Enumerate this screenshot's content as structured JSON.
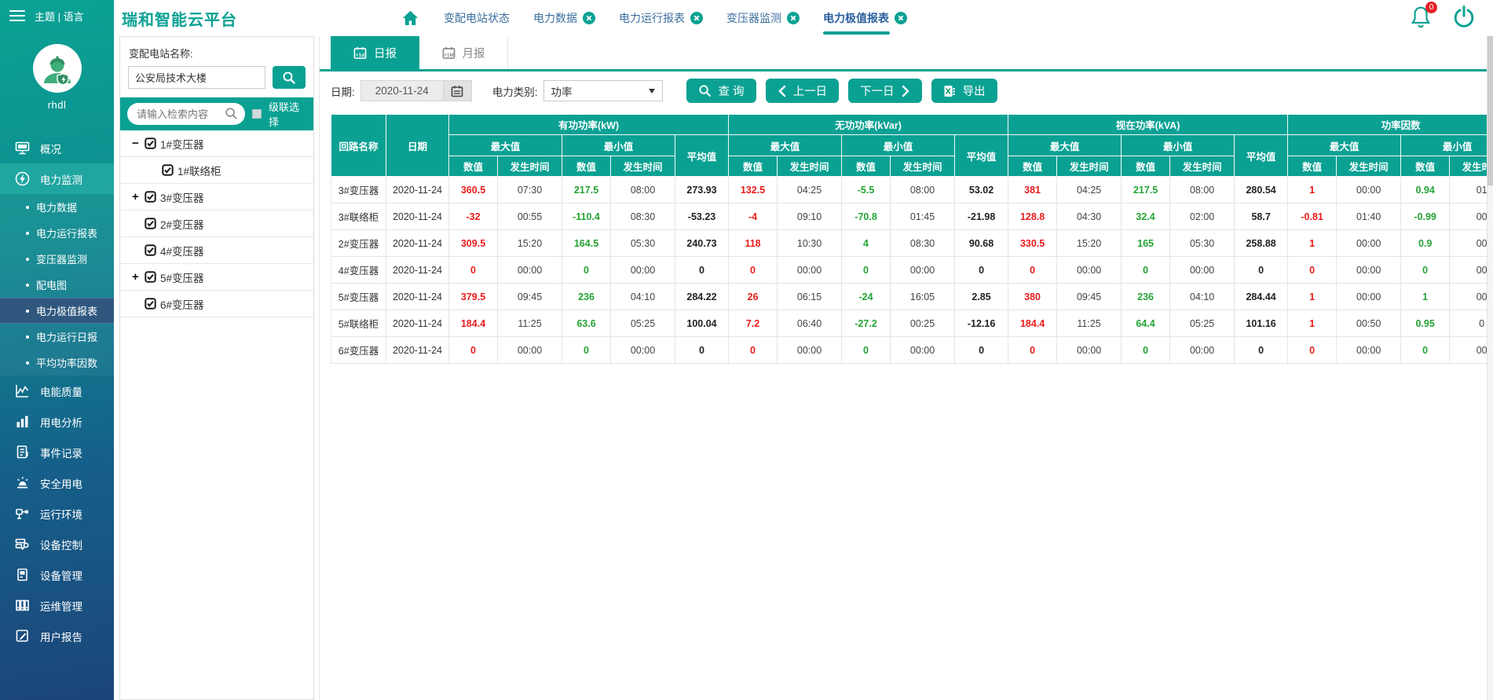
{
  "app": {
    "sidebar_header": "主题 | 语言",
    "username": "rhdl",
    "title": "瑞和智能云平台",
    "notification_count": "0"
  },
  "colors": {
    "accent": "#0aa193",
    "red": "#e81c1c",
    "green": "#24a335",
    "badge": "#e62129",
    "sb-top": "#0ba294",
    "sb-bottom": "#1c4579",
    "selected": "#30587f"
  },
  "nav_tabs": [
    {
      "label": "变配电站状态",
      "closable": false,
      "active": false
    },
    {
      "label": "电力数据",
      "closable": true,
      "active": false
    },
    {
      "label": "电力运行报表",
      "closable": true,
      "active": false
    },
    {
      "label": "变压器监测",
      "closable": true,
      "active": false
    },
    {
      "label": "电力极值报表",
      "closable": true,
      "active": true
    }
  ],
  "sidebar_items": [
    {
      "label": "概况",
      "icon": "overview-monitor-icon",
      "type": "item"
    },
    {
      "label": "电力监测",
      "icon": "power-bolt-icon",
      "type": "item",
      "state": "active"
    },
    {
      "label": "电力数据",
      "type": "subitem"
    },
    {
      "label": "电力运行报表",
      "type": "subitem"
    },
    {
      "label": "变压器监测",
      "type": "subitem"
    },
    {
      "label": "配电图",
      "type": "subitem"
    },
    {
      "label": "电力极值报表",
      "type": "subitem",
      "state": "selected"
    },
    {
      "label": "电力运行日报",
      "type": "subitem"
    },
    {
      "label": "平均功率因数",
      "type": "subitem"
    },
    {
      "label": "电能质量",
      "icon": "wave-chart-icon",
      "type": "item"
    },
    {
      "label": "用电分析",
      "icon": "bar-chart-icon",
      "type": "item"
    },
    {
      "label": "事件记录",
      "icon": "event-log-icon",
      "type": "item"
    },
    {
      "label": "安全用电",
      "icon": "alarm-icon",
      "type": "item"
    },
    {
      "label": "运行环境",
      "icon": "environment-icon",
      "type": "item"
    },
    {
      "label": "设备控制",
      "icon": "device-control-icon",
      "type": "item"
    },
    {
      "label": "设备管理",
      "icon": "device-manage-icon",
      "type": "item"
    },
    {
      "label": "运维管理",
      "icon": "ops-manage-icon",
      "type": "item"
    },
    {
      "label": "用户报告",
      "icon": "user-report-icon",
      "type": "item"
    }
  ],
  "tree": {
    "station_label": "变配电站名称:",
    "station_value": "公安局技术大楼",
    "search_placeholder": "请输入检索内容",
    "cascade_label": "级联选择",
    "nodes": [
      {
        "label": "1#变压器",
        "toggle": "minus",
        "indent": 0,
        "checked": true
      },
      {
        "label": "1#联络柜",
        "toggle": "none",
        "indent": 1,
        "checked": true
      },
      {
        "label": "3#变压器",
        "toggle": "plus",
        "indent": 0,
        "checked": true
      },
      {
        "label": "2#变压器",
        "toggle": "none",
        "indent": 0,
        "checked": true
      },
      {
        "label": "4#变压器",
        "toggle": "none",
        "indent": 0,
        "checked": true
      },
      {
        "label": "5#变压器",
        "toggle": "plus",
        "indent": 0,
        "checked": true
      },
      {
        "label": "6#变压器",
        "toggle": "none",
        "indent": 0,
        "checked": true
      }
    ]
  },
  "report_tabs": [
    {
      "label": "日报",
      "icon": "daily-calendar-icon",
      "icon_text": "+1d",
      "active": true
    },
    {
      "label": "月报",
      "icon": "monthly-calendar-icon",
      "icon_text": "+1M",
      "active": false
    }
  ],
  "toolbar": {
    "date_label": "日期:",
    "date_value": "2020-11-24",
    "category_label": "电力类别:",
    "category_value": "功率",
    "search_button": "查 询",
    "prev_button": "上一日",
    "next_button": "下一日",
    "export_button": "导出"
  },
  "table": {
    "headers": {
      "circuit": "回路名称",
      "date": "日期",
      "max": "最大值",
      "min": "最小值",
      "avg": "平均值",
      "value": "数值",
      "time": "发生时间"
    },
    "groups": [
      {
        "key": "active",
        "title": "有功功率(kW)",
        "has_avg": true
      },
      {
        "key": "reactive",
        "title": "无功功率(kVar)",
        "has_avg": true
      },
      {
        "key": "apparent",
        "title": "视在功率(kVA)",
        "has_avg": true
      },
      {
        "key": "pf",
        "title": "功率因数",
        "has_avg": false
      }
    ],
    "rows": [
      {
        "name": "3#变压器",
        "date": "2020-11-24",
        "active": [
          "360.5",
          "07:30",
          "217.5",
          "08:00",
          "273.93"
        ],
        "reactive": [
          "132.5",
          "04:25",
          "-5.5",
          "08:00",
          "53.02"
        ],
        "apparent": [
          "381",
          "04:25",
          "217.5",
          "08:00",
          "280.54"
        ],
        "pf": [
          "1",
          "00:00",
          "0.94",
          "01"
        ]
      },
      {
        "name": "3#联络柜",
        "date": "2020-11-24",
        "active": [
          "-32",
          "00:55",
          "-110.4",
          "08:30",
          "-53.23"
        ],
        "reactive": [
          "-4",
          "09:10",
          "-70.8",
          "01:45",
          "-21.98"
        ],
        "apparent": [
          "128.8",
          "04:30",
          "32.4",
          "02:00",
          "58.7"
        ],
        "pf": [
          "-0.81",
          "01:40",
          "-0.99",
          "00"
        ]
      },
      {
        "name": "2#变压器",
        "date": "2020-11-24",
        "active": [
          "309.5",
          "15:20",
          "164.5",
          "05:30",
          "240.73"
        ],
        "reactive": [
          "118",
          "10:30",
          "4",
          "08:30",
          "90.68"
        ],
        "apparent": [
          "330.5",
          "15:20",
          "165",
          "05:30",
          "258.88"
        ],
        "pf": [
          "1",
          "00:00",
          "0.9",
          "00"
        ]
      },
      {
        "name": "4#变压器",
        "date": "2020-11-24",
        "active": [
          "0",
          "00:00",
          "0",
          "00:00",
          "0"
        ],
        "reactive": [
          "0",
          "00:00",
          "0",
          "00:00",
          "0"
        ],
        "apparent": [
          "0",
          "00:00",
          "0",
          "00:00",
          "0"
        ],
        "pf": [
          "0",
          "00:00",
          "0",
          "00"
        ]
      },
      {
        "name": "5#变压器",
        "date": "2020-11-24",
        "active": [
          "379.5",
          "09:45",
          "236",
          "04:10",
          "284.22"
        ],
        "reactive": [
          "26",
          "06:15",
          "-24",
          "16:05",
          "2.85"
        ],
        "apparent": [
          "380",
          "09:45",
          "236",
          "04:10",
          "284.44"
        ],
        "pf": [
          "1",
          "00:00",
          "1",
          "00"
        ]
      },
      {
        "name": "5#联络柜",
        "date": "2020-11-24",
        "active": [
          "184.4",
          "11:25",
          "63.6",
          "05:25",
          "100.04"
        ],
        "reactive": [
          "7.2",
          "06:40",
          "-27.2",
          "00:25",
          "-12.16"
        ],
        "apparent": [
          "184.4",
          "11:25",
          "64.4",
          "05:25",
          "101.16"
        ],
        "pf": [
          "1",
          "00:50",
          "0.95",
          "0"
        ]
      },
      {
        "name": "6#变压器",
        "date": "2020-11-24",
        "active": [
          "0",
          "00:00",
          "0",
          "00:00",
          "0"
        ],
        "reactive": [
          "0",
          "00:00",
          "0",
          "00:00",
          "0"
        ],
        "apparent": [
          "0",
          "00:00",
          "0",
          "00:00",
          "0"
        ],
        "pf": [
          "0",
          "00:00",
          "0",
          "00"
        ]
      }
    ]
  }
}
